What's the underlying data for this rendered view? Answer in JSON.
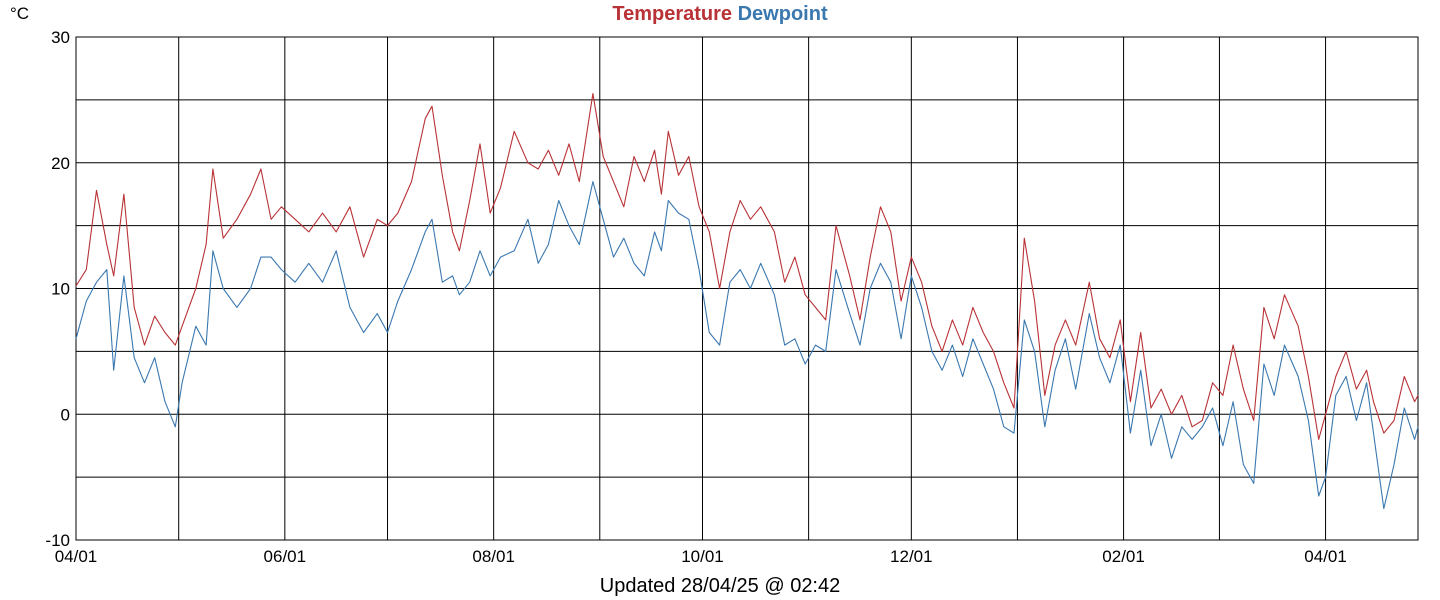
{
  "chart_data": {
    "type": "line",
    "unit_label": "°C",
    "title": [
      "Temperature",
      "Dewpoint"
    ],
    "footer": "Updated 28/04/25 @ 02:42",
    "ylim": [
      -10,
      30
    ],
    "y_ticks": [
      -10,
      0,
      10,
      20,
      30
    ],
    "y_gridlines": [
      -10,
      -5,
      0,
      5,
      10,
      15,
      20,
      25,
      30
    ],
    "x_range": [
      "2024-04-01",
      "2025-04-28"
    ],
    "x_tick_dates": [
      "2024-04-01",
      "2024-05-01",
      "2024-06-01",
      "2024-07-01",
      "2024-08-01",
      "2024-09-01",
      "2024-10-01",
      "2024-11-01",
      "2024-12-01",
      "2025-01-01",
      "2025-02-01",
      "2025-03-01",
      "2025-04-01"
    ],
    "x_tick_labels": [
      "04/01",
      "",
      "06/01",
      "",
      "08/01",
      "",
      "10/01",
      "",
      "12/01",
      "",
      "02/01",
      "",
      "04/01"
    ],
    "grid": true,
    "series": [
      {
        "name": "Temperature",
        "color": "#b83236",
        "points": [
          [
            "2024-04-01",
            10.2
          ],
          [
            "2024-04-04",
            11.5
          ],
          [
            "2024-04-07",
            17.8
          ],
          [
            "2024-04-10",
            13.5
          ],
          [
            "2024-04-12",
            11.0
          ],
          [
            "2024-04-15",
            17.5
          ],
          [
            "2024-04-18",
            8.5
          ],
          [
            "2024-04-21",
            5.5
          ],
          [
            "2024-04-24",
            7.8
          ],
          [
            "2024-04-27",
            6.5
          ],
          [
            "2024-04-30",
            5.5
          ],
          [
            "2024-05-02",
            7.0
          ],
          [
            "2024-05-06",
            10.0
          ],
          [
            "2024-05-09",
            13.5
          ],
          [
            "2024-05-11",
            19.5
          ],
          [
            "2024-05-14",
            14.0
          ],
          [
            "2024-05-18",
            15.5
          ],
          [
            "2024-05-22",
            17.5
          ],
          [
            "2024-05-25",
            19.5
          ],
          [
            "2024-05-28",
            15.5
          ],
          [
            "2024-05-31",
            16.5
          ],
          [
            "2024-06-04",
            15.5
          ],
          [
            "2024-06-08",
            14.5
          ],
          [
            "2024-06-12",
            16.0
          ],
          [
            "2024-06-16",
            14.5
          ],
          [
            "2024-06-20",
            16.5
          ],
          [
            "2024-06-24",
            12.5
          ],
          [
            "2024-06-28",
            15.5
          ],
          [
            "2024-07-01",
            15.0
          ],
          [
            "2024-07-04",
            16.0
          ],
          [
            "2024-07-08",
            18.5
          ],
          [
            "2024-07-12",
            23.5
          ],
          [
            "2024-07-14",
            24.5
          ],
          [
            "2024-07-17",
            19.0
          ],
          [
            "2024-07-20",
            14.5
          ],
          [
            "2024-07-22",
            13.0
          ],
          [
            "2024-07-25",
            17.0
          ],
          [
            "2024-07-28",
            21.5
          ],
          [
            "2024-07-31",
            16.0
          ],
          [
            "2024-08-03",
            18.0
          ],
          [
            "2024-08-07",
            22.5
          ],
          [
            "2024-08-11",
            20.0
          ],
          [
            "2024-08-14",
            19.5
          ],
          [
            "2024-08-17",
            21.0
          ],
          [
            "2024-08-20",
            19.0
          ],
          [
            "2024-08-23",
            21.5
          ],
          [
            "2024-08-26",
            18.5
          ],
          [
            "2024-08-30",
            25.5
          ],
          [
            "2024-09-02",
            20.5
          ],
          [
            "2024-09-05",
            18.5
          ],
          [
            "2024-09-08",
            16.5
          ],
          [
            "2024-09-11",
            20.5
          ],
          [
            "2024-09-14",
            18.5
          ],
          [
            "2024-09-17",
            21.0
          ],
          [
            "2024-09-19",
            17.5
          ],
          [
            "2024-09-21",
            22.5
          ],
          [
            "2024-09-24",
            19.0
          ],
          [
            "2024-09-27",
            20.5
          ],
          [
            "2024-09-30",
            16.5
          ],
          [
            "2024-10-03",
            14.5
          ],
          [
            "2024-10-06",
            10.0
          ],
          [
            "2024-10-09",
            14.5
          ],
          [
            "2024-10-12",
            17.0
          ],
          [
            "2024-10-15",
            15.5
          ],
          [
            "2024-10-18",
            16.5
          ],
          [
            "2024-10-22",
            14.5
          ],
          [
            "2024-10-25",
            10.5
          ],
          [
            "2024-10-28",
            12.5
          ],
          [
            "2024-10-31",
            9.5
          ],
          [
            "2024-11-03",
            8.5
          ],
          [
            "2024-11-06",
            7.5
          ],
          [
            "2024-11-09",
            15.0
          ],
          [
            "2024-11-13",
            11.0
          ],
          [
            "2024-11-16",
            7.5
          ],
          [
            "2024-11-19",
            12.5
          ],
          [
            "2024-11-22",
            16.5
          ],
          [
            "2024-11-25",
            14.5
          ],
          [
            "2024-11-28",
            9.0
          ],
          [
            "2024-12-01",
            12.5
          ],
          [
            "2024-12-04",
            10.5
          ],
          [
            "2024-12-07",
            7.0
          ],
          [
            "2024-12-10",
            5.0
          ],
          [
            "2024-12-13",
            7.5
          ],
          [
            "2024-12-16",
            5.5
          ],
          [
            "2024-12-19",
            8.5
          ],
          [
            "2024-12-22",
            6.5
          ],
          [
            "2024-12-25",
            5.0
          ],
          [
            "2024-12-28",
            2.5
          ],
          [
            "2024-12-31",
            0.5
          ],
          [
            "2025-01-03",
            14.0
          ],
          [
            "2025-01-06",
            9.0
          ],
          [
            "2025-01-09",
            1.5
          ],
          [
            "2025-01-12",
            5.5
          ],
          [
            "2025-01-15",
            7.5
          ],
          [
            "2025-01-18",
            5.5
          ],
          [
            "2025-01-22",
            10.5
          ],
          [
            "2025-01-25",
            6.0
          ],
          [
            "2025-01-28",
            4.5
          ],
          [
            "2025-01-31",
            7.5
          ],
          [
            "2025-02-03",
            1.0
          ],
          [
            "2025-02-06",
            6.5
          ],
          [
            "2025-02-09",
            0.5
          ],
          [
            "2025-02-12",
            2.0
          ],
          [
            "2025-02-15",
            0.0
          ],
          [
            "2025-02-18",
            1.5
          ],
          [
            "2025-02-21",
            -1.0
          ],
          [
            "2025-02-24",
            -0.5
          ],
          [
            "2025-02-27",
            2.5
          ],
          [
            "2025-03-02",
            1.5
          ],
          [
            "2025-03-05",
            5.5
          ],
          [
            "2025-03-08",
            2.0
          ],
          [
            "2025-03-11",
            -0.5
          ],
          [
            "2025-03-14",
            8.5
          ],
          [
            "2025-03-17",
            6.0
          ],
          [
            "2025-03-20",
            9.5
          ],
          [
            "2025-03-24",
            7.0
          ],
          [
            "2025-03-27",
            3.0
          ],
          [
            "2025-03-30",
            -2.0
          ],
          [
            "2025-04-01",
            0.0
          ],
          [
            "2025-04-04",
            3.0
          ],
          [
            "2025-04-07",
            5.0
          ],
          [
            "2025-04-10",
            2.0
          ],
          [
            "2025-04-13",
            3.5
          ],
          [
            "2025-04-15",
            1.0
          ],
          [
            "2025-04-18",
            -1.5
          ],
          [
            "2025-04-21",
            -0.5
          ],
          [
            "2025-04-24",
            3.0
          ],
          [
            "2025-04-27",
            1.0
          ],
          [
            "2025-04-28",
            1.5
          ]
        ]
      },
      {
        "name": "Dewpoint",
        "color": "#3a78b0",
        "points": [
          [
            "2024-04-01",
            6.0
          ],
          [
            "2024-04-04",
            9.0
          ],
          [
            "2024-04-07",
            10.5
          ],
          [
            "2024-04-10",
            11.5
          ],
          [
            "2024-04-12",
            3.5
          ],
          [
            "2024-04-15",
            11.0
          ],
          [
            "2024-04-18",
            4.5
          ],
          [
            "2024-04-21",
            2.5
          ],
          [
            "2024-04-24",
            4.5
          ],
          [
            "2024-04-27",
            1.0
          ],
          [
            "2024-04-30",
            -1.0
          ],
          [
            "2024-05-02",
            2.5
          ],
          [
            "2024-05-06",
            7.0
          ],
          [
            "2024-05-09",
            5.5
          ],
          [
            "2024-05-11",
            13.0
          ],
          [
            "2024-05-14",
            10.0
          ],
          [
            "2024-05-18",
            8.5
          ],
          [
            "2024-05-22",
            10.0
          ],
          [
            "2024-05-25",
            12.5
          ],
          [
            "2024-05-28",
            12.5
          ],
          [
            "2024-05-31",
            11.5
          ],
          [
            "2024-06-04",
            10.5
          ],
          [
            "2024-06-08",
            12.0
          ],
          [
            "2024-06-12",
            10.5
          ],
          [
            "2024-06-16",
            13.0
          ],
          [
            "2024-06-20",
            8.5
          ],
          [
            "2024-06-24",
            6.5
          ],
          [
            "2024-06-28",
            8.0
          ],
          [
            "2024-07-01",
            6.5
          ],
          [
            "2024-07-04",
            9.0
          ],
          [
            "2024-07-08",
            11.5
          ],
          [
            "2024-07-12",
            14.5
          ],
          [
            "2024-07-14",
            15.5
          ],
          [
            "2024-07-17",
            10.5
          ],
          [
            "2024-07-20",
            11.0
          ],
          [
            "2024-07-22",
            9.5
          ],
          [
            "2024-07-25",
            10.5
          ],
          [
            "2024-07-28",
            13.0
          ],
          [
            "2024-07-31",
            11.0
          ],
          [
            "2024-08-03",
            12.5
          ],
          [
            "2024-08-07",
            13.0
          ],
          [
            "2024-08-11",
            15.5
          ],
          [
            "2024-08-14",
            12.0
          ],
          [
            "2024-08-17",
            13.5
          ],
          [
            "2024-08-20",
            17.0
          ],
          [
            "2024-08-23",
            15.0
          ],
          [
            "2024-08-26",
            13.5
          ],
          [
            "2024-08-30",
            18.5
          ],
          [
            "2024-09-02",
            15.5
          ],
          [
            "2024-09-05",
            12.5
          ],
          [
            "2024-09-08",
            14.0
          ],
          [
            "2024-09-11",
            12.0
          ],
          [
            "2024-09-14",
            11.0
          ],
          [
            "2024-09-17",
            14.5
          ],
          [
            "2024-09-19",
            13.0
          ],
          [
            "2024-09-21",
            17.0
          ],
          [
            "2024-09-24",
            16.0
          ],
          [
            "2024-09-27",
            15.5
          ],
          [
            "2024-09-30",
            11.5
          ],
          [
            "2024-10-03",
            6.5
          ],
          [
            "2024-10-06",
            5.5
          ],
          [
            "2024-10-09",
            10.5
          ],
          [
            "2024-10-12",
            11.5
          ],
          [
            "2024-10-15",
            10.0
          ],
          [
            "2024-10-18",
            12.0
          ],
          [
            "2024-10-22",
            9.5
          ],
          [
            "2024-10-25",
            5.5
          ],
          [
            "2024-10-28",
            6.0
          ],
          [
            "2024-10-31",
            4.0
          ],
          [
            "2024-11-03",
            5.5
          ],
          [
            "2024-11-06",
            5.0
          ],
          [
            "2024-11-09",
            11.5
          ],
          [
            "2024-11-13",
            8.0
          ],
          [
            "2024-11-16",
            5.5
          ],
          [
            "2024-11-19",
            10.0
          ],
          [
            "2024-11-22",
            12.0
          ],
          [
            "2024-11-25",
            10.5
          ],
          [
            "2024-11-28",
            6.0
          ],
          [
            "2024-12-01",
            11.0
          ],
          [
            "2024-12-04",
            8.5
          ],
          [
            "2024-12-07",
            5.0
          ],
          [
            "2024-12-10",
            3.5
          ],
          [
            "2024-12-13",
            5.5
          ],
          [
            "2024-12-16",
            3.0
          ],
          [
            "2024-12-19",
            6.0
          ],
          [
            "2024-12-22",
            4.0
          ],
          [
            "2024-12-25",
            2.0
          ],
          [
            "2024-12-28",
            -1.0
          ],
          [
            "2024-12-31",
            -1.5
          ],
          [
            "2025-01-03",
            7.5
          ],
          [
            "2025-01-06",
            5.0
          ],
          [
            "2025-01-09",
            -1.0
          ],
          [
            "2025-01-12",
            3.5
          ],
          [
            "2025-01-15",
            6.0
          ],
          [
            "2025-01-18",
            2.0
          ],
          [
            "2025-01-22",
            8.0
          ],
          [
            "2025-01-25",
            4.5
          ],
          [
            "2025-01-28",
            2.5
          ],
          [
            "2025-01-31",
            5.5
          ],
          [
            "2025-02-03",
            -1.5
          ],
          [
            "2025-02-06",
            3.5
          ],
          [
            "2025-02-09",
            -2.5
          ],
          [
            "2025-02-12",
            0.0
          ],
          [
            "2025-02-15",
            -3.5
          ],
          [
            "2025-02-18",
            -1.0
          ],
          [
            "2025-02-21",
            -2.0
          ],
          [
            "2025-02-24",
            -1.0
          ],
          [
            "2025-02-27",
            0.5
          ],
          [
            "2025-03-02",
            -2.5
          ],
          [
            "2025-03-05",
            1.0
          ],
          [
            "2025-03-08",
            -4.0
          ],
          [
            "2025-03-11",
            -5.5
          ],
          [
            "2025-03-14",
            4.0
          ],
          [
            "2025-03-17",
            1.5
          ],
          [
            "2025-03-20",
            5.5
          ],
          [
            "2025-03-24",
            3.0
          ],
          [
            "2025-03-27",
            -0.5
          ],
          [
            "2025-03-30",
            -6.5
          ],
          [
            "2025-04-01",
            -5.0
          ],
          [
            "2025-04-04",
            1.5
          ],
          [
            "2025-04-07",
            3.0
          ],
          [
            "2025-04-10",
            -0.5
          ],
          [
            "2025-04-13",
            2.5
          ],
          [
            "2025-04-15",
            -1.5
          ],
          [
            "2025-04-18",
            -7.5
          ],
          [
            "2025-04-21",
            -4.0
          ],
          [
            "2025-04-24",
            0.5
          ],
          [
            "2025-04-27",
            -2.0
          ],
          [
            "2025-04-28",
            -1.0
          ]
        ]
      }
    ]
  }
}
